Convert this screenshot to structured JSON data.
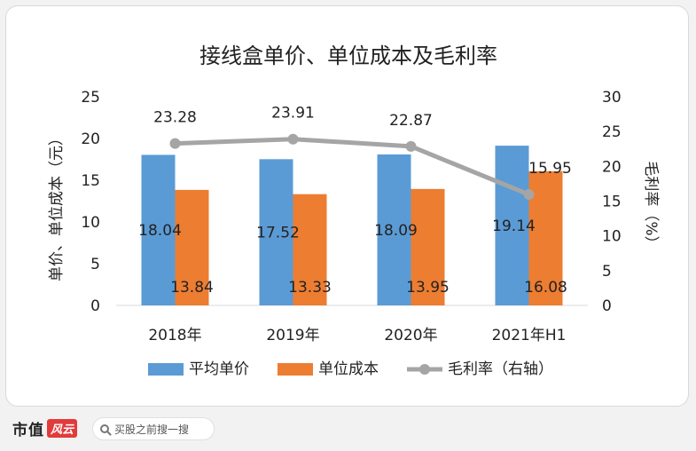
{
  "chart_data": {
    "type": "bar",
    "title": "接线盒单价、单位成本及毛利率",
    "categories": [
      "2018年",
      "2019年",
      "2020年",
      "2021年H1"
    ],
    "series": [
      {
        "name": "平均单价",
        "type": "bar",
        "axis": "left",
        "color": "#5b9bd5",
        "values": [
          18.04,
          17.52,
          18.09,
          19.14
        ]
      },
      {
        "name": "单位成本",
        "type": "bar",
        "axis": "left",
        "color": "#ed7d31",
        "values": [
          13.84,
          13.33,
          13.95,
          16.08
        ]
      },
      {
        "name": "毛利率（右轴）",
        "type": "line",
        "axis": "right",
        "color": "#a5a5a5",
        "values": [
          23.28,
          23.91,
          22.87,
          15.95
        ]
      }
    ],
    "ylabel_left": "单价、单位成本（元）",
    "ylabel_right": "毛利率（%）",
    "ylim_left": [
      0,
      25
    ],
    "yticks_left": [
      0,
      5,
      10,
      15,
      20,
      25
    ],
    "ylim_right": [
      0,
      30
    ],
    "yticks_right": [
      0,
      5,
      10,
      15,
      20,
      25,
      30
    ],
    "grid": false,
    "legend_position": "bottom"
  },
  "footer": {
    "brand": "市值",
    "brand_badge": "风云",
    "search_placeholder": "买股之前搜一搜"
  },
  "icons": {
    "search": "search-icon"
  }
}
